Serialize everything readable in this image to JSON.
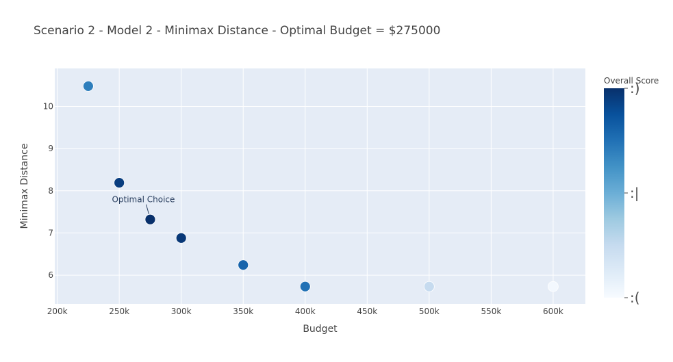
{
  "chart_data": {
    "type": "scatter",
    "title": "Scenario 2 - Model 2 - Minimax Distance - Optimal Budget = $275000",
    "xlabel": "Budget",
    "ylabel": "Minimax Distance",
    "xlim": [
      198000,
      626000
    ],
    "ylim": [
      5.32,
      10.9
    ],
    "x_ticks": [
      200000,
      250000,
      300000,
      350000,
      400000,
      450000,
      500000,
      550000,
      600000
    ],
    "x_tick_labels": [
      "200k",
      "250k",
      "300k",
      "350k",
      "400k",
      "450k",
      "500k",
      "550k",
      "600k"
    ],
    "y_ticks": [
      6,
      7,
      8,
      9,
      10
    ],
    "y_tick_labels": [
      "6",
      "7",
      "8",
      "9",
      "10"
    ],
    "grid": true,
    "x": [
      225000,
      250000,
      275000,
      300000,
      350000,
      400000,
      500000,
      600000
    ],
    "y": [
      10.48,
      8.19,
      7.32,
      6.88,
      6.24,
      5.73,
      5.73,
      5.73
    ],
    "color_values": [
      0.7,
      0.95,
      1.0,
      0.97,
      0.8,
      0.75,
      0.25,
      0.02
    ],
    "colorbar": {
      "title": "Overall Score",
      "tick_labels": [
        ":)",
        ":|",
        ":("
      ],
      "tick_positions": [
        1.0,
        0.5,
        0.0
      ],
      "colorscale": [
        [
          0.0,
          "#f7fbff"
        ],
        [
          0.125,
          "#deebf7"
        ],
        [
          0.25,
          "#c6dbef"
        ],
        [
          0.375,
          "#9ecae1"
        ],
        [
          0.5,
          "#6baed6"
        ],
        [
          0.625,
          "#4292c6"
        ],
        [
          0.75,
          "#2171b5"
        ],
        [
          0.875,
          "#08519c"
        ],
        [
          1.0,
          "#08306b"
        ]
      ]
    },
    "annotations": [
      {
        "text": "Optimal Choice",
        "x": 275000,
        "y": 7.32
      }
    ]
  },
  "colors": {
    "plot_background": "#e5ecf6",
    "grid": "#ffffff",
    "text": "#444444",
    "marker_outline": "#ffffff"
  }
}
